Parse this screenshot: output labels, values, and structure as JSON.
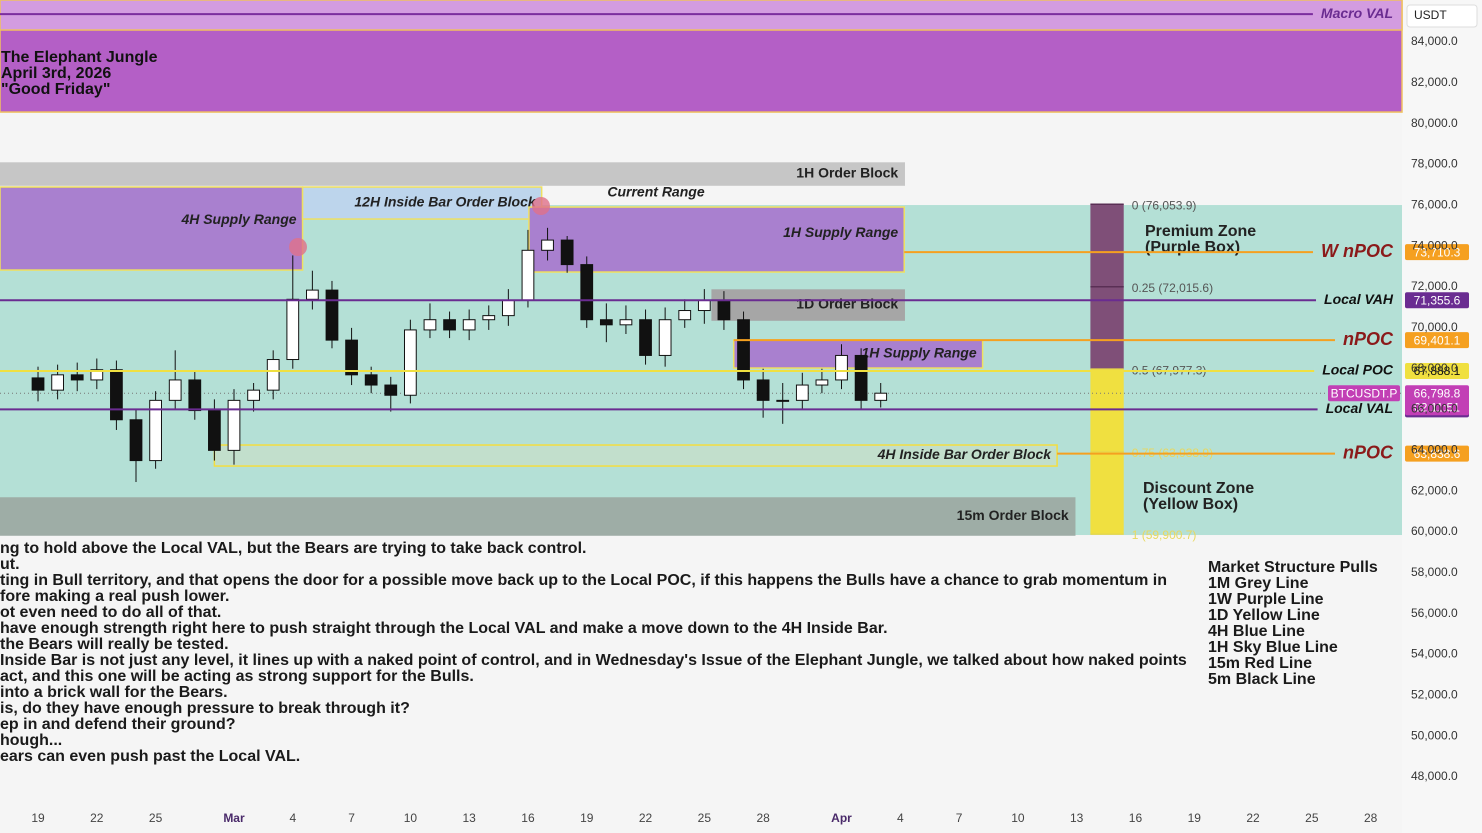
{
  "chart_data": {
    "type": "candlestick",
    "title": [
      "The Elephant Jungle",
      "April 3rd, 2026",
      "\"Good Friday\""
    ],
    "currency": "USDT",
    "x": [
      0,
      1,
      2,
      3,
      4,
      5,
      6,
      7,
      8,
      9,
      10,
      11,
      12,
      13,
      14,
      15,
      16,
      17,
      18,
      19,
      20,
      21,
      22,
      23,
      24,
      25,
      26,
      27,
      28,
      29,
      30,
      31,
      32,
      33,
      34,
      35,
      36,
      37,
      38,
      39,
      40,
      41,
      42,
      43
    ],
    "open": [
      67550,
      66950,
      67700,
      67450,
      67950,
      65500,
      63500,
      66450,
      67450,
      65950,
      64000,
      66450,
      66950,
      68450,
      71400,
      71850,
      69400,
      67700,
      67200,
      66700,
      69900,
      70400,
      69900,
      70400,
      70600,
      71350,
      73800,
      74300,
      73100,
      70400,
      70150,
      70400,
      68650,
      70400,
      70850,
      71350,
      70400,
      67450,
      66450,
      66450,
      67200,
      67450,
      68650,
      66450
    ],
    "high": [
      68100,
      68200,
      68300,
      68500,
      68400,
      66000,
      66900,
      68900,
      67900,
      66500,
      67000,
      67300,
      68900,
      73550,
      72800,
      72300,
      70000,
      68100,
      67600,
      70400,
      71200,
      70800,
      70900,
      71100,
      71900,
      74800,
      74900,
      74500,
      73500,
      71200,
      71100,
      70900,
      71000,
      71400,
      71900,
      71800,
      70800,
      68000,
      67300,
      67800,
      68000,
      69200,
      69000,
      67300
    ],
    "low": [
      66400,
      66500,
      66900,
      67000,
      65000,
      62450,
      63100,
      66000,
      65500,
      63500,
      63300,
      65900,
      66500,
      68000,
      70900,
      69000,
      67200,
      66800,
      65900,
      66300,
      69500,
      69500,
      69400,
      69900,
      70100,
      71000,
      73300,
      72700,
      70000,
      69300,
      69700,
      68200,
      68100,
      70000,
      70200,
      69900,
      67000,
      65600,
      65300,
      66000,
      66800,
      67000,
      66000,
      66100
    ],
    "close": [
      66950,
      67700,
      67450,
      67950,
      65500,
      63500,
      66450,
      67450,
      65950,
      64000,
      66450,
      66950,
      68450,
      71400,
      71850,
      69400,
      67700,
      67200,
      66700,
      69900,
      70400,
      69900,
      70400,
      70600,
      71350,
      73800,
      74300,
      73100,
      70400,
      70150,
      70400,
      68650,
      70400,
      70850,
      71350,
      70400,
      67450,
      66450,
      66450,
      67200,
      67450,
      68650,
      66450,
      66800
    ],
    "up_color": "#ffffff",
    "down_color": "#111111",
    "xlim": [
      -1.94,
      69.6
    ],
    "ylim": [
      46630,
      86060
    ],
    "xticks": [
      {
        "value": 0,
        "label": "19"
      },
      {
        "value": 3,
        "label": "22"
      },
      {
        "value": 6,
        "label": "25"
      },
      {
        "value": 10,
        "label": "Mar"
      },
      {
        "value": 13,
        "label": "4"
      },
      {
        "value": 16,
        "label": "7"
      },
      {
        "value": 19,
        "label": "10"
      },
      {
        "value": 22,
        "label": "13"
      },
      {
        "value": 25,
        "label": "16"
      },
      {
        "value": 28,
        "label": "19"
      },
      {
        "value": 31,
        "label": "22"
      },
      {
        "value": 34,
        "label": "25"
      },
      {
        "value": 37,
        "label": "28"
      },
      {
        "value": 41,
        "label": "Apr"
      },
      {
        "value": 44,
        "label": "4"
      },
      {
        "value": 47,
        "label": "7"
      },
      {
        "value": 50,
        "label": "10"
      },
      {
        "value": 53,
        "label": "13"
      },
      {
        "value": 56,
        "label": "16"
      },
      {
        "value": 59,
        "label": "19"
      },
      {
        "value": 62,
        "label": "22"
      },
      {
        "value": 65,
        "label": "25"
      },
      {
        "value": 68,
        "label": "28"
      }
    ],
    "yticks": [
      {
        "value": 48000,
        "label": "48,000.0"
      },
      {
        "value": 50000,
        "label": "50,000.0"
      },
      {
        "value": 52000,
        "label": "52,000.0"
      },
      {
        "value": 54000,
        "label": "54,000.0"
      },
      {
        "value": 56000,
        "label": "56,000.0"
      },
      {
        "value": 58000,
        "label": "58,000.0"
      },
      {
        "value": 60000,
        "label": "60,000.0"
      },
      {
        "value": 62000,
        "label": "62,000.0"
      },
      {
        "value": 64000,
        "label": "64,000.0"
      },
      {
        "value": 66000,
        "label": "66,000.0"
      },
      {
        "value": 68000,
        "label": "68,000.0"
      },
      {
        "value": 70000,
        "label": "70,000.0"
      },
      {
        "value": 72000,
        "label": "72,000.0"
      },
      {
        "value": 74000,
        "label": "74,000.0"
      },
      {
        "value": 76000,
        "label": "76,000.0"
      },
      {
        "value": 78000,
        "label": "78,000.0"
      },
      {
        "value": 80000,
        "label": "80,000.0"
      },
      {
        "value": 82000,
        "label": "82,000.0"
      },
      {
        "value": 84000,
        "label": "84,000.0"
      }
    ],
    "current_range": {
      "name": "Current Range",
      "x": [
        -1.94,
        69.6
      ],
      "y": [
        59854,
        76017
      ],
      "color": "#b4e0d6"
    },
    "zones": [
      {
        "x": [
          -1.94,
          69.6
        ],
        "y": [
          80571,
          86060
        ],
        "color": "#b45fc6",
        "border": "#f0c060"
      },
      {
        "x": [
          -1.94,
          69.6
        ],
        "y": [
          84590,
          86060
        ],
        "color": "#d39ce0",
        "border": "#f0c060"
      },
      {
        "name": "1H Order Block",
        "x": [
          -1.94,
          44.2
        ],
        "y": [
          76996,
          78074
        ],
        "color": "#c6c6c6",
        "border": "#c6c6c6"
      },
      {
        "name": "4H Supply Range",
        "x": [
          -1.94,
          13.5
        ],
        "y": [
          72833,
          76898
        ],
        "color": "#a980cf",
        "border": "#efe060"
      },
      {
        "name": "12H Inside Bar Order Block",
        "x": [
          13.5,
          25.7
        ],
        "y": [
          75331,
          76898
        ],
        "color": "#bdd5ec",
        "border": "#efe060"
      },
      {
        "name": "1H Supply Range",
        "x": [
          25.05,
          44.2
        ],
        "y": [
          72735,
          75918
        ],
        "color": "#a980cf",
        "border": "#efe060"
      },
      {
        "name": "1D Order Block",
        "x": [
          34.4,
          44.2
        ],
        "y": [
          70384,
          71853
        ],
        "color": "#a6a6a6",
        "border": "#a6a6a6"
      },
      {
        "name": "1H Supply Range",
        "x": [
          35.5,
          48.2
        ],
        "y": [
          68033,
          69404
        ],
        "color": "#a980cf",
        "border": "#efe060"
      },
      {
        "name": "4H Inside Bar Order Block",
        "x": [
          9.0,
          52.0
        ],
        "y": [
          63233,
          64262
        ],
        "color": "#c2dfcc",
        "border": "#f3de40"
      },
      {
        "name": "15m Order Block",
        "x": [
          -1.94,
          52.9
        ],
        "y": [
          59854,
          61667
        ],
        "color": "#9eada6",
        "border": "#9eada6"
      }
    ],
    "levels": [
      {
        "name": "Macro VAL",
        "value": 85370,
        "x_start": -1.94,
        "color": "#7b2d9e",
        "label_color": "#6a2c91"
      },
      {
        "name": "W nPOC",
        "value": 73710.3,
        "label": "73,710.3",
        "x_start": 44.2,
        "color": "#f5a020",
        "label_color": "#8b1a1a"
      },
      {
        "name": "Local VAH",
        "value": 71355.6,
        "label": "71,355.6",
        "x_start": -1.94,
        "color": "#6a2c91",
        "label_color": "#111111"
      },
      {
        "name": "nPOC",
        "value": 69401.1,
        "label": "69,401.1",
        "x_start": 35.5,
        "color": "#f5a020",
        "label_color": "#8b1a1a"
      },
      {
        "name": "Local POC",
        "value": 67888.1,
        "label": "67,888.1",
        "x_start": -1.94,
        "color": "#f0e040",
        "label_color": "#111111"
      },
      {
        "name": "Local VAL",
        "value": 66009.9,
        "label": "66,009.9",
        "x_start": -1.94,
        "color": "#6a2c91",
        "label_color": "#111111"
      },
      {
        "name": "nPOC",
        "value": 63838.6,
        "label": "63,838.6",
        "x_start": 52.0,
        "color": "#f5a020",
        "label_color": "#8b1a1a"
      }
    ],
    "last_price": {
      "name": "BTCUSDT.P",
      "value": 66798.8,
      "label": "66,798.8",
      "countdown": "02:11:51",
      "color": "#c23fb5"
    },
    "fib": {
      "x": [
        53.7,
        55.4
      ],
      "upper_color": "#7f4f78",
      "lower_color": "#f0e040",
      "levels": [
        {
          "value": 76053.9,
          "label": "0 (76,053.9)"
        },
        {
          "value": 72015.6,
          "label": "0.25 (72,015.6)"
        },
        {
          "value": 67977.3,
          "label": "0.5 (67,977.3)"
        },
        {
          "value": 63938.9,
          "label": "0.75 (63,938.9)"
        },
        {
          "value": 59900.7,
          "label": "1 (59,900.7)"
        }
      ]
    },
    "premium_label": [
      "Premium Zone",
      "(Purple Box)"
    ],
    "discount_label": [
      "Discount Zone",
      "(Yellow Box)"
    ],
    "notes": [
      "ng to hold above the Local VAL, but the Bears are trying to take back control.",
      "ut.",
      "ting in Bull territory, and that opens the door for a possible move back up to the Local POC, if this happens the Bulls have a chance to grab momentum in",
      "fore making a real push lower.",
      "ot even need to do all of that.",
      "have enough strength right here to push straight through the Local VAL and make a move down to the 4H Inside Bar.",
      " the Bears will really be tested.",
      "Inside Bar is not just any level, it lines up with a naked point of control, and in Wednesday's Issue of the Elephant Jungle, we talked about how naked points",
      " act, and this one will be acting as strong support for the Bulls.",
      " into a brick wall for the Bears.",
      " is, do they have enough pressure to break through it?",
      "ep in and defend their ground?",
      "hough...",
      "ears can even push past the Local VAL."
    ],
    "legend": {
      "title": "Market Structure Pulls",
      "items": [
        "1M Grey Line",
        "1W Purple Line",
        "1D Yellow Line",
        "4H Blue Line",
        "1H Sky Blue Line",
        "15m Red Line",
        "5m Black Line"
      ]
    }
  }
}
